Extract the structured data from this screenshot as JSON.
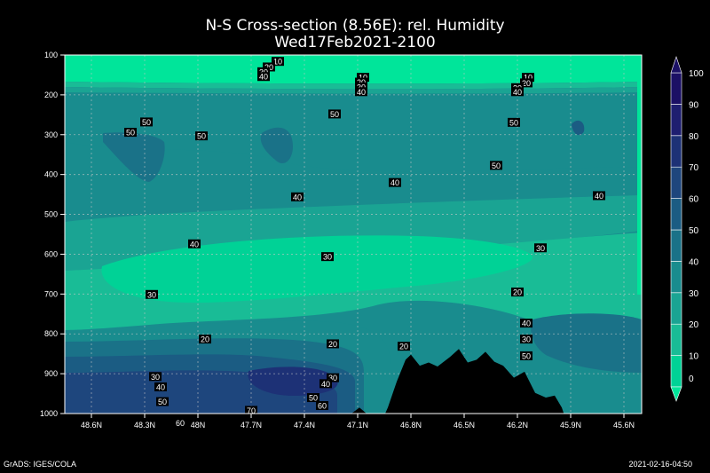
{
  "title": "N-S Cross-section (8.56E): rel. Humidity",
  "subtitle": "Wed17Feb2021-2100",
  "credit": "GrADS: IGES/COLA",
  "timestamp": "2021-02-16-04:50",
  "chart_data": {
    "type": "heatmap",
    "title": "N-S Cross-section (8.56E): rel. Humidity",
    "subtitle": "Wed17Feb2021-2100",
    "x_ticks": [
      "48.6N",
      "48.3N",
      "48N",
      "47.7N",
      "47.4N",
      "47.1N",
      "46.8N",
      "46.5N",
      "46.2N",
      "45.9N",
      "45.6N"
    ],
    "x_tick_values": [
      48.6,
      48.3,
      48.0,
      47.7,
      47.4,
      47.1,
      46.8,
      46.5,
      46.2,
      45.9,
      45.6
    ],
    "xlim": [
      48.75,
      45.5
    ],
    "y_ticks": [
      100,
      200,
      300,
      400,
      500,
      600,
      700,
      800,
      900,
      1000
    ],
    "ylim": [
      1000,
      100
    ],
    "grid": true,
    "colorbar": {
      "levels": [
        0,
        10,
        20,
        30,
        40,
        50,
        60,
        70,
        80,
        90,
        100
      ],
      "colors": [
        "#00e59a",
        "#00d296",
        "#19bc96",
        "#1aa493",
        "#198c8e",
        "#1a7288",
        "#1b5c83",
        "#1e467d",
        "#1d3176",
        "#1e1e70",
        "#1b1065"
      ]
    },
    "contour_labels": [
      {
        "lat": 47.55,
        "p": 116,
        "v": 10
      },
      {
        "lat": 47.07,
        "p": 156,
        "v": 10
      },
      {
        "lat": 46.14,
        "p": 156,
        "v": 10
      },
      {
        "lat": 47.6,
        "p": 130,
        "v": 20
      },
      {
        "lat": 47.08,
        "p": 168,
        "v": 20
      },
      {
        "lat": 46.15,
        "p": 170,
        "v": 20
      },
      {
        "lat": 47.63,
        "p": 142,
        "v": 30
      },
      {
        "lat": 47.08,
        "p": 180,
        "v": 30
      },
      {
        "lat": 46.2,
        "p": 182,
        "v": 30
      },
      {
        "lat": 47.63,
        "p": 154,
        "v": 40
      },
      {
        "lat": 47.08,
        "p": 192,
        "v": 40
      },
      {
        "lat": 46.2,
        "p": 192,
        "v": 40
      },
      {
        "lat": 48.29,
        "p": 268,
        "v": 50
      },
      {
        "lat": 48.38,
        "p": 294,
        "v": 50
      },
      {
        "lat": 47.98,
        "p": 303,
        "v": 50
      },
      {
        "lat": 47.23,
        "p": 248,
        "v": 50
      },
      {
        "lat": 46.32,
        "p": 377,
        "v": 50
      },
      {
        "lat": 46.22,
        "p": 269,
        "v": 50
      },
      {
        "lat": 47.44,
        "p": 456,
        "v": 40
      },
      {
        "lat": 46.89,
        "p": 420,
        "v": 40
      },
      {
        "lat": 45.74,
        "p": 453,
        "v": 40
      },
      {
        "lat": 48.02,
        "p": 574,
        "v": 40
      },
      {
        "lat": 47.27,
        "p": 606,
        "v": 30
      },
      {
        "lat": 46.07,
        "p": 584,
        "v": 30
      },
      {
        "lat": 48.26,
        "p": 701,
        "v": 30
      },
      {
        "lat": 46.2,
        "p": 695,
        "v": 20
      },
      {
        "lat": 47.96,
        "p": 813,
        "v": 20
      },
      {
        "lat": 47.24,
        "p": 825,
        "v": 20
      },
      {
        "lat": 46.84,
        "p": 831,
        "v": 20
      },
      {
        "lat": 46.15,
        "p": 813,
        "v": 30
      },
      {
        "lat": 46.15,
        "p": 773,
        "v": 40
      },
      {
        "lat": 46.15,
        "p": 855,
        "v": 50
      },
      {
        "lat": 48.24,
        "p": 907,
        "v": 30
      },
      {
        "lat": 47.24,
        "p": 910,
        "v": 30
      },
      {
        "lat": 48.21,
        "p": 933,
        "v": 40
      },
      {
        "lat": 47.28,
        "p": 925,
        "v": 40
      },
      {
        "lat": 47.35,
        "p": 960,
        "v": 50
      },
      {
        "lat": 48.2,
        "p": 970,
        "v": 50
      },
      {
        "lat": 47.3,
        "p": 980,
        "v": 60
      },
      {
        "lat": 47.7,
        "p": 992,
        "v": 70
      },
      {
        "lat": 48.1,
        "p": 1023,
        "v": 60
      }
    ],
    "terrain_profile": [
      {
        "lat": 48.75,
        "p": 1025
      },
      {
        "lat": 48.7,
        "p": 1023
      },
      {
        "lat": 48.6,
        "p": 1020
      },
      {
        "lat": 48.5,
        "p": 1026
      },
      {
        "lat": 48.3,
        "p": 1030
      },
      {
        "lat": 48.1,
        "p": 1022
      },
      {
        "lat": 47.9,
        "p": 1017
      },
      {
        "lat": 47.75,
        "p": 1020
      },
      {
        "lat": 47.6,
        "p": 1028
      },
      {
        "lat": 47.45,
        "p": 1030
      },
      {
        "lat": 47.3,
        "p": 1022
      },
      {
        "lat": 47.15,
        "p": 1005
      },
      {
        "lat": 47.09,
        "p": 985
      },
      {
        "lat": 47.05,
        "p": 1000
      },
      {
        "lat": 47.0,
        "p": 1012
      },
      {
        "lat": 46.97,
        "p": 1025
      },
      {
        "lat": 46.93,
        "p": 985
      },
      {
        "lat": 46.88,
        "p": 920
      },
      {
        "lat": 46.83,
        "p": 865
      },
      {
        "lat": 46.8,
        "p": 852
      },
      {
        "lat": 46.75,
        "p": 880
      },
      {
        "lat": 46.7,
        "p": 872
      },
      {
        "lat": 46.65,
        "p": 882
      },
      {
        "lat": 46.58,
        "p": 858
      },
      {
        "lat": 46.53,
        "p": 838
      },
      {
        "lat": 46.48,
        "p": 872
      },
      {
        "lat": 46.43,
        "p": 865
      },
      {
        "lat": 46.38,
        "p": 845
      },
      {
        "lat": 46.33,
        "p": 870
      },
      {
        "lat": 46.28,
        "p": 880
      },
      {
        "lat": 46.22,
        "p": 910
      },
      {
        "lat": 46.16,
        "p": 895
      },
      {
        "lat": 46.1,
        "p": 948
      },
      {
        "lat": 46.04,
        "p": 960
      },
      {
        "lat": 45.99,
        "p": 955
      },
      {
        "lat": 45.95,
        "p": 985
      },
      {
        "lat": 45.9,
        "p": 1050
      },
      {
        "lat": 45.8,
        "p": 1062
      },
      {
        "lat": 45.65,
        "p": 1060
      },
      {
        "lat": 45.5,
        "p": 1065
      }
    ]
  }
}
